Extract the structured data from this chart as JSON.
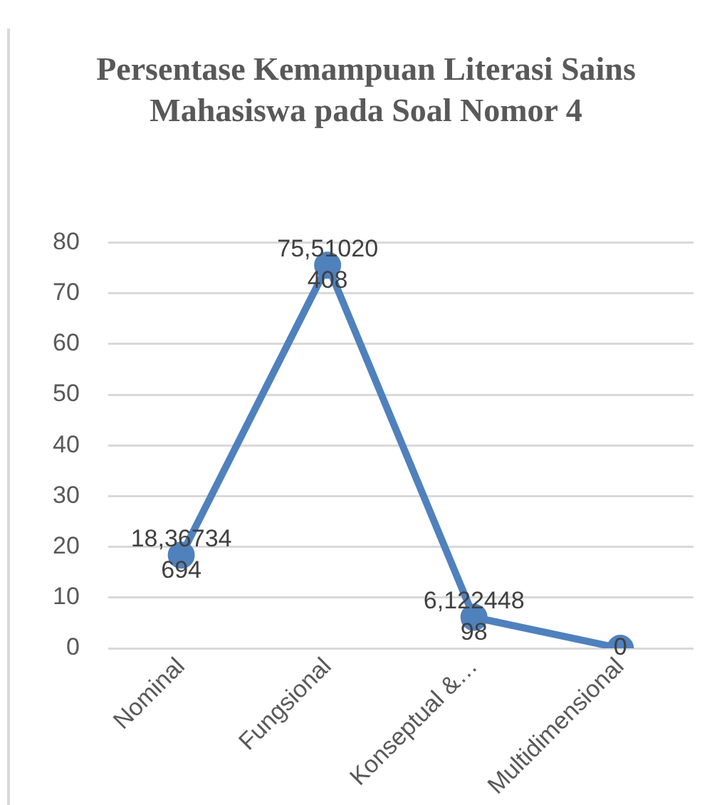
{
  "chart_data": {
    "type": "line",
    "title": "Persentase Kemampuan Literasi Sains Mahasiswa pada Soal Nomor 4",
    "categories": [
      "Nominal",
      "Fungsional",
      "Konseptual &…",
      "Multidimensional"
    ],
    "series": [
      {
        "color": "#4f81bd",
        "values": [
          18.36734694,
          75.51020408,
          6.12244898,
          0
        ],
        "value_labels": [
          "18,36734694",
          "75,51020408",
          "6,12244898",
          "0"
        ]
      }
    ],
    "ylim": [
      0,
      80
    ],
    "yticks": [
      0,
      10,
      20,
      30,
      40,
      50,
      60,
      70,
      80
    ],
    "grid": "y",
    "legend": false,
    "marker": "circle",
    "line_style": "solid"
  }
}
